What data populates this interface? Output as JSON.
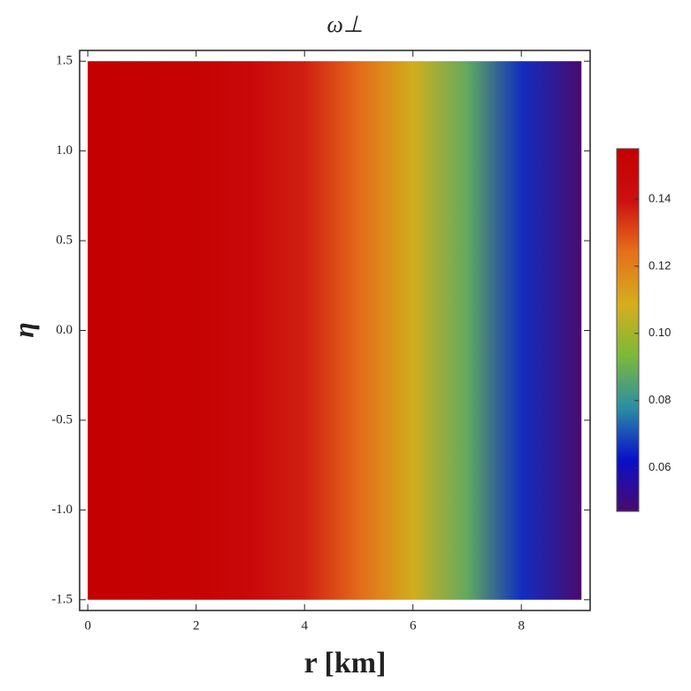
{
  "chart_data": {
    "type": "density",
    "title": "ω⊥",
    "x_label": "r [km]",
    "y_label": "η",
    "x": [
      0,
      1,
      2,
      3,
      4,
      5,
      6,
      7,
      8,
      9.1
    ],
    "values": [
      0.155,
      0.154,
      0.152,
      0.146,
      0.137,
      0.125,
      0.108,
      0.088,
      0.066,
      0.047
    ],
    "y_extent": [
      -1.5,
      1.5
    ],
    "xlim": [
      -0.15,
      9.27
    ],
    "ylim": [
      -1.56,
      1.56
    ],
    "xticks": [
      0,
      2,
      4,
      6,
      8
    ],
    "yticks": [
      {
        "value": 1.5,
        "label": "1.5"
      },
      {
        "value": 1.0,
        "label": "1.0"
      },
      {
        "value": 0.5,
        "label": "0.5"
      },
      {
        "value": 0.0,
        "label": "0.0"
      },
      {
        "value": -0.5,
        "label": "-0.5"
      },
      {
        "value": -1.0,
        "label": "-1.0"
      },
      {
        "value": -1.5,
        "label": "-1.5"
      }
    ],
    "colormap": [
      "#4a0b6e",
      "#0a0fc8",
      "#2a8fa5",
      "#7db83a",
      "#d5ae1c",
      "#e5701a",
      "#cc1010",
      "#c40000"
    ],
    "clim": [
      0.047,
      0.155
    ],
    "cticks": [
      0.06,
      0.08,
      {
        "value": 0.1,
        "label": "0.10"
      },
      0.12,
      0.14
    ]
  }
}
